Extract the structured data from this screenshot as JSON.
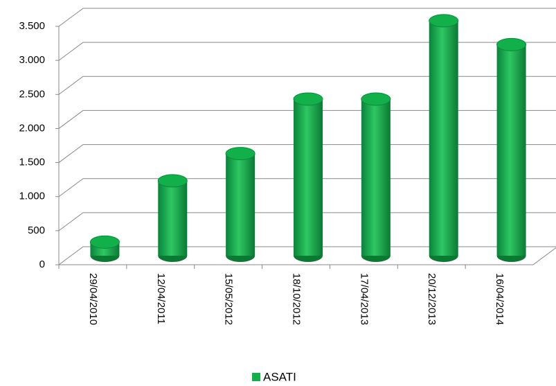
{
  "chart_data": {
    "type": "bar",
    "categories": [
      "29/04/2010",
      "12/04/2011",
      "15/05/2012",
      "18/10/2012",
      "17/04/2013",
      "20/12/2013",
      "16/04/2014"
    ],
    "series": [
      {
        "name": "ASATI",
        "color": "#12b04a",
        "values": [
          200,
          1100,
          1500,
          2300,
          2300,
          3450,
          3100
        ]
      }
    ],
    "ylim": [
      0,
      3500
    ],
    "yticks": [
      0,
      500,
      {
        "value": 1000,
        "label": "1.000"
      },
      {
        "value": 1500,
        "label": "1.500"
      },
      {
        "value": 2000,
        "label": "2.000"
      },
      {
        "value": 2500,
        "label": "2.500"
      },
      {
        "value": 3000,
        "label": "3.000"
      },
      {
        "value": 3500,
        "label": "3.500"
      }
    ],
    "grid": true,
    "legend": "bottom"
  }
}
